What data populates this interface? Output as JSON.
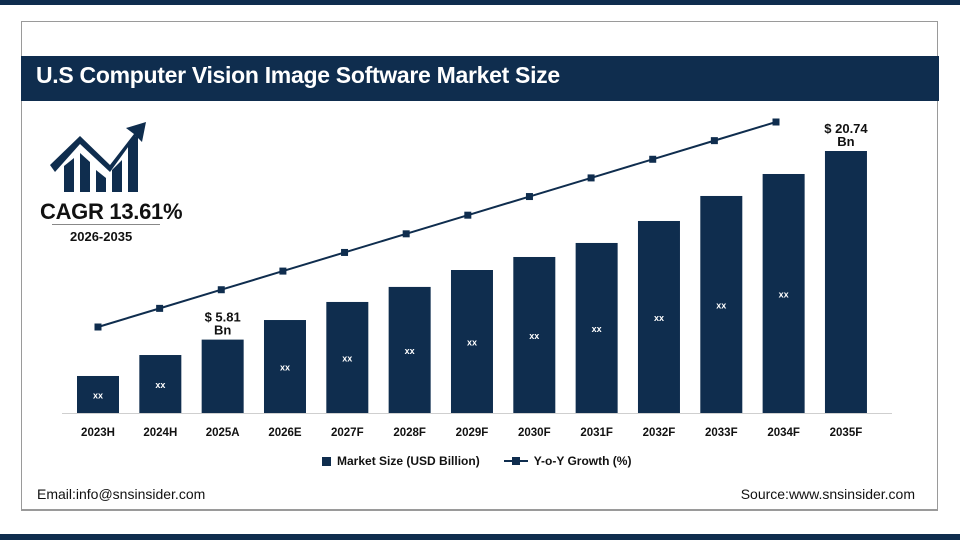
{
  "title": "U.S Computer Vision Image Software Market Size",
  "cagr": {
    "label": "CAGR 13.61%",
    "period": "2026-2035",
    "icon": "growth-chart-arrow-icon"
  },
  "footer": {
    "email": "Email:info@snsinsider.com",
    "source": "Source:www.snsinsider.com"
  },
  "colors": {
    "primary": "#0f2d4e",
    "background": "#ffffff"
  },
  "chart_data": {
    "type": "bar",
    "categories": [
      "2023H",
      "2024H",
      "2025A",
      "2026E",
      "2027F",
      "2028F",
      "2029F",
      "2030F",
      "2031F",
      "2032F",
      "2033F",
      "2034F",
      "2035F"
    ],
    "series": [
      {
        "name": "Market Size (USD Billion)",
        "type": "bar",
        "values": [
          2.93,
          4.59,
          5.81,
          7.36,
          8.79,
          9.98,
          11.32,
          12.35,
          13.46,
          15.2,
          17.18,
          18.92,
          20.74
        ],
        "labels": [
          "xx",
          "xx",
          "",
          "xx",
          "xx",
          "xx",
          "xx",
          "xx",
          "xx",
          "xx",
          "xx",
          "xx",
          ""
        ]
      },
      {
        "name": "Y-o-Y Growth (%)",
        "type": "line",
        "points": 12
      }
    ],
    "annotations": [
      {
        "category": "2025A",
        "line1": "$ 5.81",
        "line2": "Bn"
      },
      {
        "category": "2035F",
        "line1": "$ 20.74",
        "line2": "Bn"
      }
    ],
    "ylim": [
      0,
      21
    ],
    "grid": false,
    "legend": "bottom-center"
  }
}
